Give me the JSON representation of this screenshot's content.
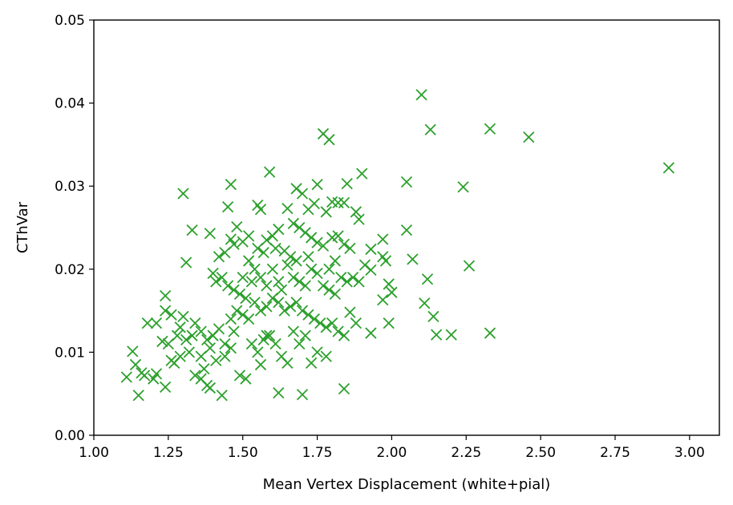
{
  "chart_data": {
    "type": "scatter",
    "title": "",
    "xlabel": "Mean Vertex Displacement (white+pial)",
    "ylabel": "CThVar",
    "xlim": [
      1.0,
      3.1
    ],
    "ylim": [
      0.0,
      0.05
    ],
    "x_ticks": [
      1.0,
      1.25,
      1.5,
      1.75,
      2.0,
      2.25,
      2.5,
      2.75,
      3.0
    ],
    "x_tick_labels": [
      "1.00",
      "1.25",
      "1.50",
      "1.75",
      "2.00",
      "2.25",
      "2.50",
      "2.75",
      "3.00"
    ],
    "y_ticks": [
      0.0,
      0.01,
      0.02,
      0.03,
      0.04,
      0.05
    ],
    "y_tick_labels": [
      "0.00",
      "0.01",
      "0.02",
      "0.03",
      "0.04",
      "0.05"
    ],
    "grid": false,
    "marker": "x",
    "color": "#2ca02c",
    "series": [
      {
        "points": [
          [
            2.1,
            0.041
          ],
          [
            2.13,
            0.0368
          ],
          [
            2.33,
            0.0369
          ],
          [
            2.46,
            0.0359
          ],
          [
            2.93,
            0.0322
          ],
          [
            1.77,
            0.0363
          ],
          [
            1.79,
            0.0356
          ],
          [
            2.05,
            0.0305
          ],
          [
            2.24,
            0.0299
          ],
          [
            2.26,
            0.0204
          ],
          [
            2.05,
            0.0247
          ],
          [
            2.07,
            0.0212
          ],
          [
            2.12,
            0.0188
          ],
          [
            2.11,
            0.0159
          ],
          [
            2.14,
            0.0143
          ],
          [
            2.15,
            0.0121
          ],
          [
            2.2,
            0.0121
          ],
          [
            2.33,
            0.0123
          ],
          [
            1.9,
            0.0315
          ],
          [
            1.85,
            0.0303
          ],
          [
            1.59,
            0.0317
          ],
          [
            1.46,
            0.0302
          ],
          [
            1.3,
            0.0291
          ],
          [
            1.68,
            0.0297
          ],
          [
            1.7,
            0.0291
          ],
          [
            1.75,
            0.0302
          ],
          [
            1.74,
            0.0279
          ],
          [
            1.8,
            0.0281
          ],
          [
            1.82,
            0.028
          ],
          [
            1.84,
            0.028
          ],
          [
            1.88,
            0.0269
          ],
          [
            1.89,
            0.026
          ],
          [
            1.55,
            0.0277
          ],
          [
            1.56,
            0.0272
          ],
          [
            1.45,
            0.0275
          ],
          [
            1.65,
            0.0273
          ],
          [
            1.72,
            0.0272
          ],
          [
            1.78,
            0.0269
          ],
          [
            1.48,
            0.0251
          ],
          [
            1.33,
            0.0247
          ],
          [
            1.39,
            0.0243
          ],
          [
            1.67,
            0.0255
          ],
          [
            1.69,
            0.025
          ],
          [
            1.71,
            0.0244
          ],
          [
            1.62,
            0.0248
          ],
          [
            1.6,
            0.024
          ],
          [
            1.58,
            0.0235
          ],
          [
            1.52,
            0.024
          ],
          [
            1.5,
            0.0233
          ],
          [
            1.46,
            0.0236
          ],
          [
            1.47,
            0.023
          ],
          [
            1.44,
            0.022
          ],
          [
            1.42,
            0.0215
          ],
          [
            1.55,
            0.0225
          ],
          [
            1.57,
            0.022
          ],
          [
            1.61,
            0.0225
          ],
          [
            1.64,
            0.0222
          ],
          [
            1.66,
            0.0215
          ],
          [
            1.73,
            0.0238
          ],
          [
            1.75,
            0.0232
          ],
          [
            1.77,
            0.0228
          ],
          [
            1.8,
            0.0238
          ],
          [
            1.82,
            0.024
          ],
          [
            1.84,
            0.023
          ],
          [
            1.86,
            0.0225
          ],
          [
            1.97,
            0.0236
          ],
          [
            1.93,
            0.0224
          ],
          [
            1.97,
            0.0215
          ],
          [
            1.98,
            0.021
          ],
          [
            1.91,
            0.0205
          ],
          [
            1.93,
            0.0199
          ],
          [
            1.99,
            0.0182
          ],
          [
            2.0,
            0.0172
          ],
          [
            1.97,
            0.0163
          ],
          [
            1.99,
            0.0135
          ],
          [
            1.93,
            0.0123
          ],
          [
            1.31,
            0.0208
          ],
          [
            1.4,
            0.0195
          ],
          [
            1.41,
            0.0185
          ],
          [
            1.43,
            0.019
          ],
          [
            1.45,
            0.018
          ],
          [
            1.47,
            0.0175
          ],
          [
            1.49,
            0.017
          ],
          [
            1.51,
            0.0165
          ],
          [
            1.53,
            0.0185
          ],
          [
            1.54,
            0.02
          ],
          [
            1.56,
            0.019
          ],
          [
            1.58,
            0.018
          ],
          [
            1.6,
            0.02
          ],
          [
            1.62,
            0.0185
          ],
          [
            1.63,
            0.0175
          ],
          [
            1.65,
            0.0205
          ],
          [
            1.67,
            0.019
          ],
          [
            1.69,
            0.0185
          ],
          [
            1.71,
            0.018
          ],
          [
            1.73,
            0.02
          ],
          [
            1.75,
            0.0195
          ],
          [
            1.77,
            0.018
          ],
          [
            1.79,
            0.0175
          ],
          [
            1.81,
            0.017
          ],
          [
            1.83,
            0.019
          ],
          [
            1.85,
            0.0185
          ],
          [
            1.87,
            0.019
          ],
          [
            1.89,
            0.0185
          ],
          [
            1.79,
            0.02
          ],
          [
            1.81,
            0.021
          ],
          [
            1.72,
            0.0215
          ],
          [
            1.68,
            0.021
          ],
          [
            1.52,
            0.021
          ],
          [
            1.5,
            0.019
          ],
          [
            1.24,
            0.0168
          ],
          [
            1.24,
            0.015
          ],
          [
            1.26,
            0.0145
          ],
          [
            1.3,
            0.0143
          ],
          [
            1.18,
            0.0135
          ],
          [
            1.21,
            0.0135
          ],
          [
            1.23,
            0.0113
          ],
          [
            1.25,
            0.011
          ],
          [
            1.28,
            0.012
          ],
          [
            1.29,
            0.013
          ],
          [
            1.31,
            0.0115
          ],
          [
            1.33,
            0.012
          ],
          [
            1.34,
            0.0135
          ],
          [
            1.36,
            0.0125
          ],
          [
            1.38,
            0.0115
          ],
          [
            1.4,
            0.012
          ],
          [
            1.42,
            0.0128
          ],
          [
            1.44,
            0.011
          ],
          [
            1.46,
            0.014
          ],
          [
            1.48,
            0.015
          ],
          [
            1.5,
            0.0145
          ],
          [
            1.52,
            0.014
          ],
          [
            1.54,
            0.016
          ],
          [
            1.56,
            0.015
          ],
          [
            1.58,
            0.0155
          ],
          [
            1.6,
            0.0165
          ],
          [
            1.62,
            0.016
          ],
          [
            1.64,
            0.015
          ],
          [
            1.66,
            0.0155
          ],
          [
            1.68,
            0.016
          ],
          [
            1.7,
            0.015
          ],
          [
            1.72,
            0.0145
          ],
          [
            1.74,
            0.014
          ],
          [
            1.76,
            0.0135
          ],
          [
            1.78,
            0.013
          ],
          [
            1.8,
            0.0135
          ],
          [
            1.82,
            0.0125
          ],
          [
            1.84,
            0.012
          ],
          [
            1.86,
            0.0148
          ],
          [
            1.88,
            0.0135
          ],
          [
            1.13,
            0.0101
          ],
          [
            1.14,
            0.0085
          ],
          [
            1.16,
            0.0075
          ],
          [
            1.17,
            0.0072
          ],
          [
            1.11,
            0.007
          ],
          [
            1.15,
            0.0048
          ],
          [
            1.2,
            0.0068
          ],
          [
            1.21,
            0.0074
          ],
          [
            1.24,
            0.0058
          ],
          [
            1.26,
            0.009
          ],
          [
            1.27,
            0.0087
          ],
          [
            1.29,
            0.0095
          ],
          [
            1.32,
            0.01
          ],
          [
            1.34,
            0.0072
          ],
          [
            1.36,
            0.0068
          ],
          [
            1.37,
            0.008
          ],
          [
            1.38,
            0.006
          ],
          [
            1.39,
            0.0057
          ],
          [
            1.41,
            0.009
          ],
          [
            1.43,
            0.0048
          ],
          [
            1.44,
            0.0095
          ],
          [
            1.46,
            0.0105
          ],
          [
            1.49,
            0.0072
          ],
          [
            1.51,
            0.0068
          ],
          [
            1.53,
            0.011
          ],
          [
            1.55,
            0.01
          ],
          [
            1.57,
            0.0115
          ],
          [
            1.59,
            0.012
          ],
          [
            1.61,
            0.011
          ],
          [
            1.63,
            0.0095
          ],
          [
            1.65,
            0.0087
          ],
          [
            1.67,
            0.0125
          ],
          [
            1.69,
            0.011
          ],
          [
            1.71,
            0.012
          ],
          [
            1.73,
            0.0087
          ],
          [
            1.75,
            0.01
          ],
          [
            1.78,
            0.0095
          ],
          [
            1.62,
            0.0051
          ],
          [
            1.7,
            0.0049
          ],
          [
            1.84,
            0.0056
          ],
          [
            1.36,
            0.0095
          ],
          [
            1.39,
            0.0105
          ],
          [
            1.47,
            0.0125
          ],
          [
            1.56,
            0.0085
          ],
          [
            1.58,
            0.012
          ]
        ]
      }
    ]
  }
}
